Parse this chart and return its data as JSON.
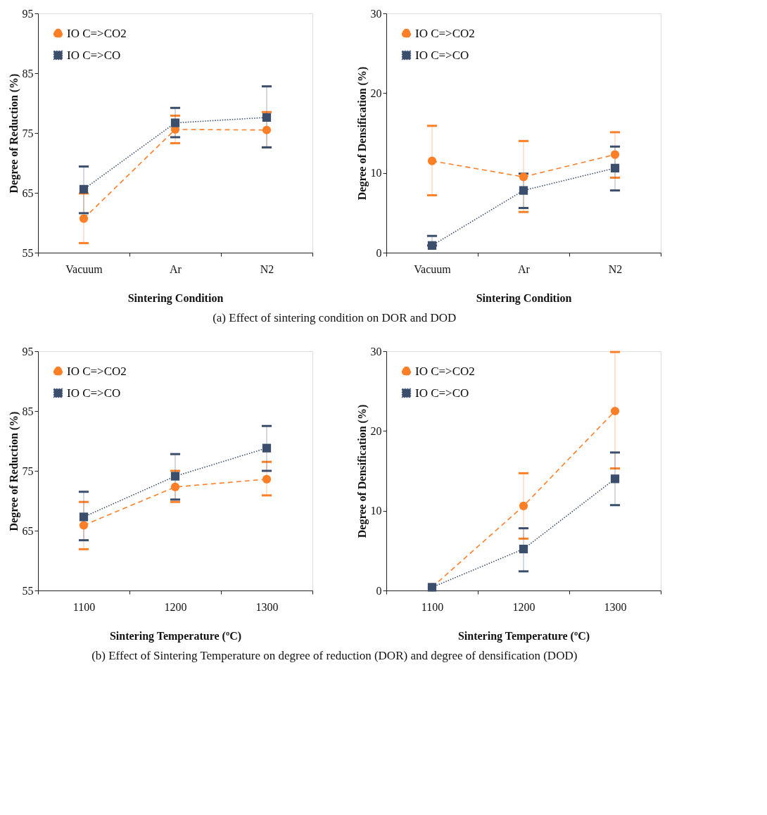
{
  "chart_data": [
    {
      "type": "line",
      "categories": [
        "Vacuum",
        "Ar",
        "N2"
      ],
      "xlabel": "Sintering Condition",
      "ylabel": "Degree of Reduction (%)",
      "ylim": [
        55,
        95
      ],
      "yticks": [
        55,
        65,
        75,
        85,
        95
      ],
      "grid": false,
      "legend": "top left",
      "annotations": [
        "(a) Effect of sintering condition on DOR and DOD"
      ],
      "series": [
        {
          "name": "IO C=>CO2",
          "color": "#ff7f27",
          "marker": "circle",
          "line_style": "dashed",
          "values": [
            60.7,
            75.6,
            75.5
          ],
          "errors": [
            [
              56.6,
              64.9
            ],
            [
              73.3,
              77.9
            ],
            [
              72.6,
              78.5
            ]
          ]
        },
        {
          "name": "IO C=>CO",
          "color": "#3b4e6b",
          "marker": "square",
          "line_style": "dotted",
          "values": [
            65.6,
            76.7,
            77.6
          ],
          "errors": [
            [
              61.6,
              69.4
            ],
            [
              74.3,
              79.2
            ],
            [
              72.6,
              82.8
            ]
          ]
        }
      ]
    },
    {
      "type": "line",
      "categories": [
        "Vacuum",
        "Ar",
        "N2"
      ],
      "xlabel": "Sintering Condition",
      "ylabel": "Degree of Densification (%)",
      "ylim": [
        0,
        30
      ],
      "yticks": [
        0,
        10,
        20,
        30
      ],
      "grid": false,
      "legend": "top left",
      "series": [
        {
          "name": "IO C=>CO2",
          "color": "#ff7f27",
          "marker": "circle",
          "line_style": "dashed",
          "values": [
            11.5,
            9.5,
            12.3
          ],
          "errors": [
            [
              7.2,
              15.9
            ],
            [
              5.1,
              14.0
            ],
            [
              9.4,
              15.1
            ]
          ]
        },
        {
          "name": "IO C=>CO",
          "color": "#3b4e6b",
          "marker": "square",
          "line_style": "dotted",
          "values": [
            0.9,
            7.8,
            10.6
          ],
          "errors": [
            [
              0.9,
              2.1
            ],
            [
              5.6,
              9.9
            ],
            [
              7.8,
              13.3
            ]
          ]
        }
      ]
    },
    {
      "type": "line",
      "categories": [
        "1100",
        "1200",
        "1300"
      ],
      "xlabel": "Sintering Temperature (ºC)",
      "ylabel": "Degree of Reduction (%)",
      "ylim": [
        55,
        95
      ],
      "yticks": [
        55,
        65,
        75,
        85,
        95
      ],
      "grid": false,
      "legend": "top left",
      "annotations": [
        "(b) Effect of Sintering Temperature on degree of reduction (DOR) and degree of densification (DOD)"
      ],
      "series": [
        {
          "name": "IO C=>CO2",
          "color": "#ff7f27",
          "marker": "circle",
          "line_style": "dashed",
          "values": [
            65.9,
            72.3,
            73.6
          ],
          "errors": [
            [
              61.9,
              69.8
            ],
            [
              69.8,
              75.0
            ],
            [
              70.9,
              76.5
            ]
          ]
        },
        {
          "name": "IO C=>CO",
          "color": "#3b4e6b",
          "marker": "square",
          "line_style": "dotted",
          "values": [
            67.3,
            74.1,
            78.8
          ],
          "errors": [
            [
              63.4,
              71.5
            ],
            [
              70.2,
              77.8
            ],
            [
              75.0,
              82.5
            ]
          ]
        }
      ]
    },
    {
      "type": "line",
      "categories": [
        "1100",
        "1200",
        "1300"
      ],
      "xlabel": "Sintering Temperature (ºC)",
      "ylabel": "Degree of Densification (%)",
      "ylim": [
        0,
        30
      ],
      "yticks": [
        0,
        10,
        20,
        30
      ],
      "grid": false,
      "legend": "top left",
      "series": [
        {
          "name": "IO C=>CO2",
          "color": "#ff7f27",
          "marker": "circle",
          "line_style": "dashed",
          "values": [
            0.4,
            10.6,
            22.5
          ],
          "errors": [
            null,
            [
              6.5,
              14.7
            ],
            [
              15.3,
              29.9
            ]
          ]
        },
        {
          "name": "IO C=>CO",
          "color": "#3b4e6b",
          "marker": "square",
          "line_style": "dotted",
          "values": [
            0.4,
            5.2,
            14.0
          ],
          "errors": [
            null,
            [
              2.4,
              7.8
            ],
            [
              10.7,
              17.3
            ]
          ]
        }
      ]
    }
  ]
}
